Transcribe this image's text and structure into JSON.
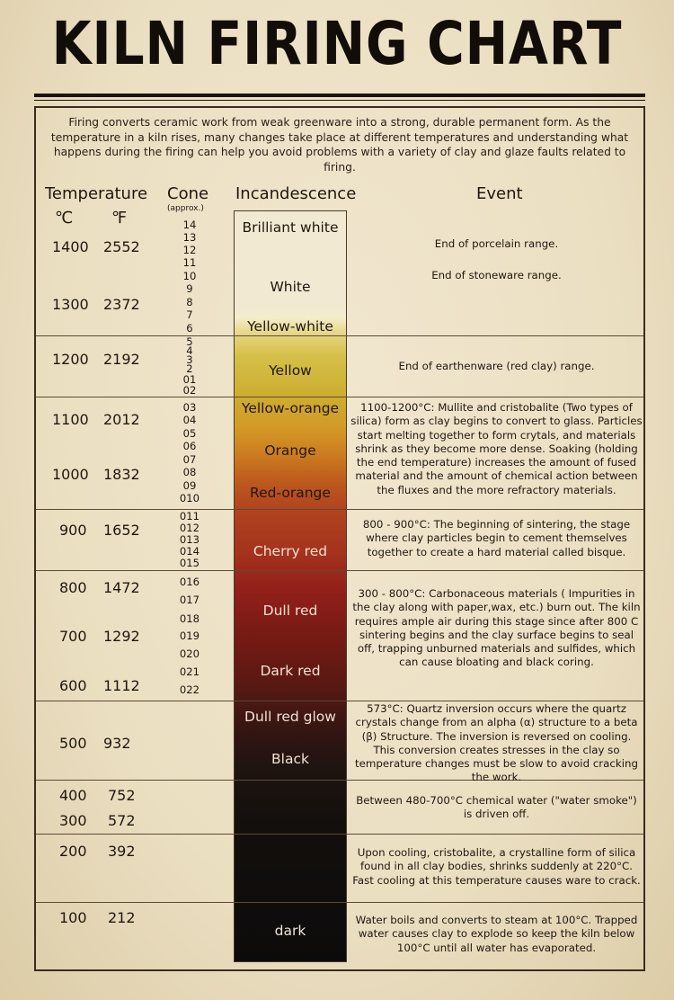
{
  "title": "KILN FIRING CHART",
  "intro": "Firing converts ceramic work from weak greenware into a strong, durable permanent form. As the temperature in a kiln rises, many changes take place at different temperatures and understanding what happens during the firing can help you avoid problems with a variety of clay and glaze faults related to firing.",
  "headers": {
    "temperature": "Temperature",
    "celsius": "℃",
    "fahrenheit": "℉",
    "cone": "Cone",
    "cone_sub": "(approx.)",
    "incandescence": "Incandescence",
    "event": "Event"
  },
  "temperatures": [
    {
      "c": "1400",
      "f": "2552"
    },
    {
      "c": "1300",
      "f": "2372"
    },
    {
      "c": "1200",
      "f": "2192"
    },
    {
      "c": "1100",
      "f": "2012"
    },
    {
      "c": "1000",
      "f": "1832"
    },
    {
      "c": "900",
      "f": "1652"
    },
    {
      "c": "800",
      "f": "1472"
    },
    {
      "c": "700",
      "f": "1292"
    },
    {
      "c": "600",
      "f": "1112"
    },
    {
      "c": "500",
      "f": "932"
    },
    {
      "c": "400",
      "f": "752"
    },
    {
      "c": "300",
      "f": "572"
    },
    {
      "c": "200",
      "f": "392"
    },
    {
      "c": "100",
      "f": "212"
    }
  ],
  "cones": [
    "14",
    "13",
    "12",
    "11",
    "10",
    "9",
    "8",
    "7",
    "6",
    "5",
    "4",
    "3",
    "2",
    "01",
    "02",
    "03",
    "04",
    "05",
    "06",
    "07",
    "08",
    "09",
    "010",
    "011",
    "012",
    "013",
    "014",
    "015",
    "016",
    "017",
    "018",
    "019",
    "020",
    "021",
    "022"
  ],
  "incandescence": [
    "Brilliant white",
    "White",
    "Yellow-white",
    "Yellow",
    "Yellow-orange",
    "Orange",
    "Red-orange",
    "Cherry red",
    "Dull red",
    "Dark red",
    "Dull red glow",
    "Black",
    "dark"
  ],
  "events": [
    "End of porcelain range.",
    "End of stoneware range.",
    "End of earthenware (red clay) range.",
    "1100-1200°C: Mullite and cristobalite (Two types of silica) form as clay begins to convert to glass. Particles start melting together to form crytals, and materials shrink as they become more dense. Soaking (holding the end temperature) increases the amount of fused material and the amount of chemical action between the fluxes and the more refractory materials.",
    "800 - 900°C: The beginning of sintering, the stage where clay particles begin to cement themselves together to create a hard material called bisque.",
    "300 - 800°C: Carbonaceous materials ( Impurities in the clay along with paper,wax, etc.) burn out. The kiln requires ample air during this stage since after 800 C sintering begins and the clay surface begins to seal off, trapping unburned materials and sulfides, which can cause bloating and black coring.",
    "573°C: Quartz inversion occurs where the quartz crystals change from an alpha (α) structure to a beta (β) Structure. The inversion is reversed on cooling. This conversion creates stresses in the clay so temperature changes must be slow to avoid cracking the work.",
    "Between 480-700°C chemical water (\"water smoke\") is driven off.",
    "Upon cooling, cristobalite, a crystalline form of silica found in all clay bodies, shrinks suddenly at 220°C. Fast cooling at this temperature causes ware to crack.",
    "Water boils and converts to steam at 100°C. Trapped water causes clay to explode so keep the kiln below 100°C until all water has evaporated."
  ]
}
